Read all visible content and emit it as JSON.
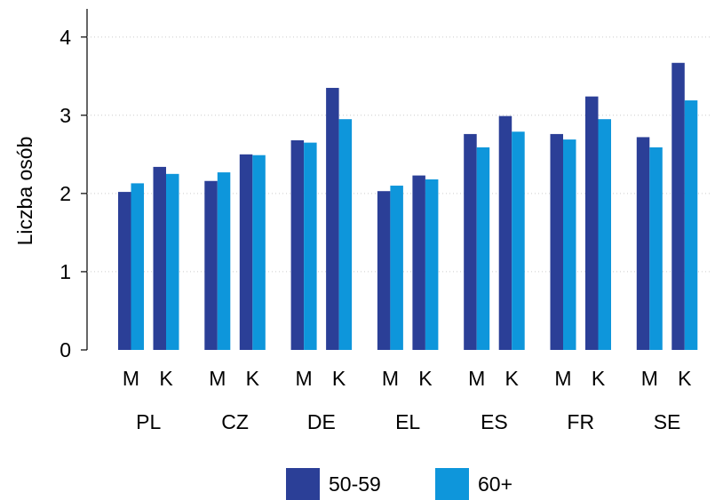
{
  "chart_data": {
    "type": "bar",
    "y_label": "Liczba osób",
    "groups": [
      "PL",
      "CZ",
      "DE",
      "EL",
      "ES",
      "FR",
      "SE"
    ],
    "categories": [
      "M",
      "K",
      "M",
      "K",
      "M",
      "K",
      "M",
      "K",
      "M",
      "K",
      "M",
      "K",
      "M",
      "K"
    ],
    "series": [
      {
        "name": "50-59",
        "color": "#2b3f97",
        "values": [
          2.02,
          2.34,
          2.16,
          2.5,
          2.68,
          3.35,
          2.03,
          2.23,
          2.76,
          2.99,
          2.76,
          3.24,
          2.72,
          3.67
        ]
      },
      {
        "name": "60+",
        "color": "#0e96db",
        "values": [
          2.13,
          2.25,
          2.27,
          2.49,
          2.65,
          2.95,
          2.1,
          2.18,
          2.59,
          2.79,
          2.69,
          2.95,
          2.59,
          3.19
        ]
      }
    ],
    "ylim": [
      0,
      4.36
    ],
    "yticks": [
      0,
      1,
      2,
      3,
      4
    ],
    "grid": true,
    "legend": "bottom"
  }
}
